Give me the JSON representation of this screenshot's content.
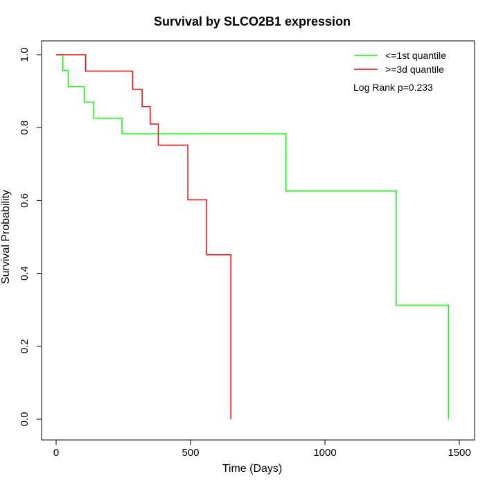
{
  "chart_data": {
    "type": "line",
    "subtype": "step",
    "title": "Survival by SLCO2B1 expression",
    "xlabel": "Time (Days)",
    "ylabel": "Survival Probability",
    "xlim": [
      0,
      1500
    ],
    "ylim": [
      0,
      1
    ],
    "x_ticks": [
      "0",
      "500",
      "1000",
      "1500"
    ],
    "y_ticks": [
      "0.0",
      "0.2",
      "0.4",
      "0.6",
      "0.8",
      "1.0"
    ],
    "grid": false,
    "legend_position": "top-right",
    "annotation": "Log Rank p=0.233",
    "series": [
      {
        "name": "<=1st quantile",
        "color": "#00ff00",
        "x": [
          0,
          25,
          45,
          105,
          140,
          245,
          855,
          1265,
          1460
        ],
        "y": [
          1.0,
          0.957,
          0.913,
          0.87,
          0.826,
          0.783,
          0.626,
          0.313,
          0.0
        ]
      },
      {
        "name": ">=3d quantile",
        "color": "#ff0000",
        "x": [
          0,
          110,
          285,
          320,
          350,
          380,
          490,
          560,
          650
        ],
        "y": [
          1.0,
          0.955,
          0.905,
          0.858,
          0.81,
          0.752,
          0.602,
          0.451,
          0.0
        ]
      }
    ]
  }
}
